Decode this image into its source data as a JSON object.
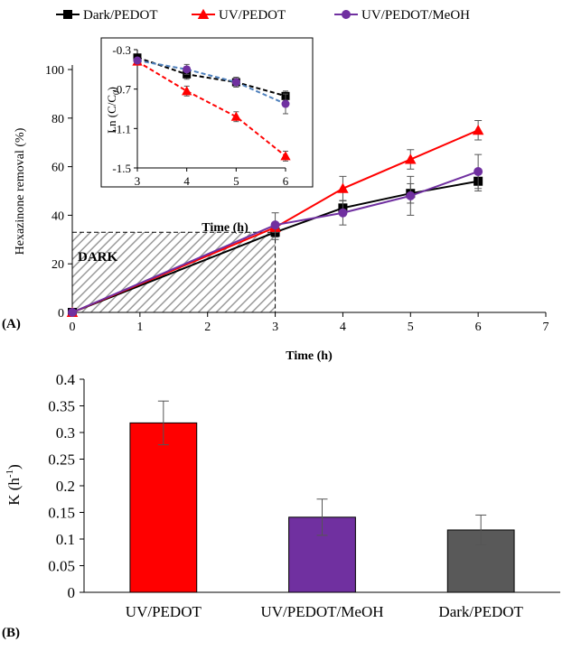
{
  "chart_data": [
    {
      "type": "line",
      "panel_label": "(A)",
      "xlabel": "Time (h)",
      "ylabel": "Hexazinone removal (%)",
      "xlim": [
        0,
        7
      ],
      "ylim": [
        0,
        100
      ],
      "xticks": [
        0,
        1,
        2,
        3,
        4,
        5,
        6,
        7
      ],
      "yticks": [
        0,
        20,
        40,
        60,
        80,
        100
      ],
      "legend_position": "top",
      "annotation": "DARK",
      "dark_region": [
        0,
        3
      ],
      "series": [
        {
          "name": "Dark/PEDOT",
          "color": "#000000",
          "marker": "square",
          "x": [
            0,
            3,
            4,
            5,
            6
          ],
          "y": [
            0,
            33,
            43,
            49,
            54
          ],
          "err": [
            0,
            3,
            3,
            4,
            4
          ]
        },
        {
          "name": "UV/PEDOT",
          "color": "#ff0000",
          "marker": "triangle",
          "x": [
            0,
            3,
            4,
            5,
            6
          ],
          "y": [
            0,
            35,
            51,
            63,
            75
          ],
          "err": [
            0,
            2,
            5,
            4,
            4
          ]
        },
        {
          "name": "UV/PEDOT/MeOH",
          "color": "#7030a0",
          "marker": "circle",
          "x": [
            0,
            3,
            4,
            5,
            6
          ],
          "y": [
            0,
            36,
            41,
            48,
            58
          ],
          "err": [
            0,
            5,
            5,
            8,
            7
          ]
        }
      ],
      "inset": {
        "type": "scatter",
        "xlabel": "Time (h)",
        "ylabel": "Ln (C/C",
        "ylabel_sub": "0",
        "ylabel_end": ")",
        "xlim": [
          3,
          6
        ],
        "ylim": [
          -1.5,
          -0.3
        ],
        "xticks": [
          3,
          4,
          5,
          6
        ],
        "yticks": [
          -1.5,
          -1.1,
          -0.7,
          -0.3
        ],
        "ytick_labels": [
          "-1.5",
          "-1.1",
          "-0.7",
          "-0.3"
        ],
        "series": [
          {
            "name": "Dark/PEDOT",
            "color": "#000000",
            "marker": "square",
            "line_color": "#000000",
            "x": [
              3,
              4,
              5,
              6
            ],
            "y": [
              -0.38,
              -0.55,
              -0.63,
              -0.77
            ],
            "err": [
              0.02,
              0.05,
              0.05,
              0.05
            ]
          },
          {
            "name": "UV/PEDOT",
            "color": "#ff0000",
            "marker": "triangle",
            "line_color": "#ff0000",
            "x": [
              3,
              4,
              5,
              6
            ],
            "y": [
              -0.42,
              -0.72,
              -0.98,
              -1.38
            ],
            "err": [
              0.02,
              0.05,
              0.05,
              0.05
            ]
          },
          {
            "name": "UV/PEDOT/MeOH",
            "color": "#7030a0",
            "marker": "circle",
            "line_color": "#4f81bd",
            "x": [
              3,
              4,
              5,
              6
            ],
            "y": [
              -0.41,
              -0.5,
              -0.63,
              -0.85
            ],
            "err": [
              0.02,
              0.05,
              0.05,
              0.1
            ]
          }
        ]
      }
    },
    {
      "type": "bar",
      "panel_label": "(B)",
      "ylabel": "K (h",
      "ylabel_sup": "-1",
      "ylabel_end": ")",
      "ylim": [
        0,
        0.4
      ],
      "yticks": [
        0,
        0.05,
        0.1,
        0.15,
        0.2,
        0.25,
        0.3,
        0.35,
        0.4
      ],
      "ytick_labels": [
        "0",
        "0.05",
        "0.1",
        "0.15",
        "0.2",
        "0.25",
        "0.3",
        "0.35",
        "0.4"
      ],
      "categories": [
        "UV/PEDOT",
        "UV/PEDOT/MeOH",
        "Dark/PEDOT"
      ],
      "values": [
        0.318,
        0.141,
        0.117
      ],
      "errors": [
        0.041,
        0.034,
        0.028
      ],
      "colors": [
        "#ff0000",
        "#7030a0",
        "#595959"
      ]
    }
  ]
}
